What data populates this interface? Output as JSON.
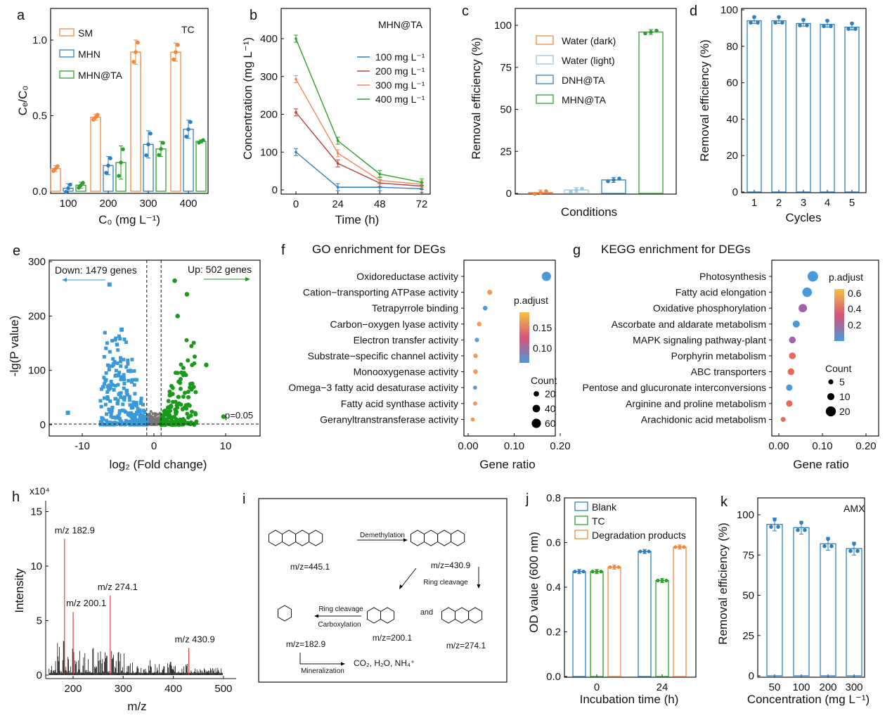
{
  "chart_data": [
    {
      "panel": "a",
      "panel_label": "a",
      "type": "bar",
      "annotation": "TC",
      "xlabel": "C₀ (mg L⁻¹)",
      "ylabel": "Cₑ/C₀",
      "ylim": [
        0,
        1.2
      ],
      "yticks": [
        "0.0",
        "0.5",
        "1.0"
      ],
      "categories": [
        "100",
        "200",
        "300",
        "400"
      ],
      "series": [
        {
          "name": "SM",
          "color": "#F0883E",
          "values": [
            0.15,
            0.49,
            0.92,
            0.92
          ],
          "sd": [
            0.02,
            0.02,
            0.08,
            0.06
          ]
        },
        {
          "name": "MHN",
          "color": "#2E7FC0",
          "values": [
            0.02,
            0.17,
            0.31,
            0.41
          ],
          "sd": [
            0.03,
            0.06,
            0.09,
            0.06
          ]
        },
        {
          "name": "MHN@TA",
          "color": "#2CA02C",
          "values": [
            0.04,
            0.19,
            0.28,
            0.33
          ],
          "sd": [
            0.02,
            0.11,
            0.05,
            0.01
          ]
        }
      ]
    },
    {
      "panel": "b",
      "panel_label": "b",
      "type": "line",
      "annotation": "MHN@TA",
      "xlabel": "Time (h)",
      "ylabel": "Concentration (mg L⁻¹)",
      "xlim": [
        -8,
        80
      ],
      "ylim": [
        -10,
        460
      ],
      "xticks": [
        "0",
        "24",
        "48",
        "72"
      ],
      "yticks": [
        "0",
        "100",
        "200",
        "300",
        "400"
      ],
      "x": [
        0,
        24,
        48,
        72
      ],
      "series": [
        {
          "name": "100 mg L⁻¹",
          "color": "#2E7FC0",
          "values": [
            100,
            7,
            7,
            3
          ]
        },
        {
          "name": "200 mg L⁻¹",
          "color": "#B8443A",
          "values": [
            205,
            70,
            18,
            10
          ]
        },
        {
          "name": "300 mg L⁻¹",
          "color": "#F0885A",
          "values": [
            293,
            97,
            25,
            15
          ]
        },
        {
          "name": "400 mg L⁻¹",
          "color": "#2CA02C",
          "values": [
            400,
            130,
            42,
            20
          ]
        }
      ]
    },
    {
      "panel": "c",
      "panel_label": "c",
      "type": "bar",
      "xlabel": "Conditions",
      "ylabel": "Removal efficiency (%)",
      "ylim": [
        0,
        110
      ],
      "yticks": [
        "0",
        "25",
        "50",
        "75",
        "100"
      ],
      "categories": [
        "Water (dark)",
        "Water (light)",
        "DNH@TA",
        "MHN@TA"
      ],
      "colors": [
        "#F0883E",
        "#9ECAE1",
        "#2E7FC0",
        "#2CA02C"
      ],
      "values": [
        0.5,
        2,
        8,
        96
      ]
    },
    {
      "panel": "d",
      "panel_label": "d",
      "type": "bar",
      "xlabel": "Cycles",
      "ylabel": "Removal efficiency (%)",
      "ylim": [
        0,
        100
      ],
      "yticks": [
        "0",
        "20",
        "40",
        "60",
        "80",
        "100"
      ],
      "categories": [
        "1",
        "2",
        "3",
        "4",
        "5"
      ],
      "color": "#2E7FC0",
      "values": [
        94,
        94,
        92.5,
        92,
        90.5
      ]
    },
    {
      "panel": "e",
      "panel_label": "e",
      "type": "scatter",
      "xlabel": "log₂ (Fold change)",
      "ylabel": "-lg(P value)",
      "xlim": [
        -15,
        15
      ],
      "ylim": [
        -5,
        300
      ],
      "xticks": [
        "-10",
        "0",
        "10"
      ],
      "yticks": [
        "0",
        "100",
        "200",
        "300"
      ],
      "down_label": "Down: 1479 genes",
      "up_label": "Up: 502 genes",
      "threshold_label": "p=0.05",
      "down_count": 1479,
      "up_count": 502,
      "fold_cutoff": 1,
      "down_color": "#3A9AD9",
      "up_color": "#1A9A1A",
      "ns_color": "#777777",
      "highlight_down": [
        [
          -6.2,
          258
        ],
        [
          -12,
          22
        ],
        [
          -4.5,
          175
        ]
      ],
      "highlight_up": [
        [
          2.9,
          265
        ],
        [
          4.6,
          240
        ],
        [
          3.3,
          200
        ],
        [
          7.3,
          110
        ],
        [
          9.7,
          15
        ]
      ]
    },
    {
      "panel": "f",
      "panel_label": "f",
      "type": "scatter",
      "title": "GO enrichment for DEGs",
      "xlabel": "Gene ratio",
      "xlim": [
        0,
        0.2
      ],
      "xticks": [
        "0.00",
        "0.10",
        "0.20"
      ],
      "color_legend_title": "p.adjust",
      "color_ticks": [
        "0.15",
        "0.10"
      ],
      "size_legend_title": "Count",
      "size_ticks": [
        "20",
        "40",
        "60"
      ],
      "terms": [
        {
          "name": "Oxidoreductase activity",
          "highlight": true,
          "ratio": 0.17,
          "count": 60,
          "padj": 0.08
        },
        {
          "name": "Cation−transporting ATPase activity",
          "highlight": false,
          "ratio": 0.047,
          "count": 18,
          "padj": 0.16
        },
        {
          "name": "Tetrapyrrole binding",
          "highlight": true,
          "ratio": 0.037,
          "count": 15,
          "padj": 0.09
        },
        {
          "name": "Carbon−oxygen lyase activity",
          "highlight": true,
          "ratio": 0.024,
          "count": 15,
          "padj": 0.17
        },
        {
          "name": "Electron transfer activity",
          "highlight": false,
          "ratio": 0.019,
          "count": 14,
          "padj": 0.1
        },
        {
          "name": "Substrate−specific channel activity",
          "highlight": false,
          "ratio": 0.016,
          "count": 14,
          "padj": 0.14
        },
        {
          "name": "Monooxygenase activity",
          "highlight": true,
          "ratio": 0.016,
          "count": 15,
          "padj": 0.16
        },
        {
          "name": "Omega−3 fatty acid desaturase activity",
          "highlight": false,
          "ratio": 0.015,
          "count": 12,
          "padj": 0.1
        },
        {
          "name": "Fatty acid synthase activity",
          "highlight": false,
          "ratio": 0.015,
          "count": 13,
          "padj": 0.16
        },
        {
          "name": "Geranyltranstransferase activity",
          "highlight": false,
          "ratio": 0.01,
          "count": 12,
          "padj": 0.16
        }
      ]
    },
    {
      "panel": "g",
      "panel_label": "g",
      "type": "scatter",
      "title": "KEGG enrichment for DEGs",
      "xlabel": "Gene ratio",
      "xlim": [
        0,
        0.2
      ],
      "xticks": [
        "0.00",
        "0.10",
        "0.20"
      ],
      "color_legend_title": "p.adjust",
      "color_ticks": [
        "0.6",
        "0.4",
        "0.2"
      ],
      "size_legend_title": "Count",
      "size_ticks": [
        "5",
        "10",
        "20"
      ],
      "terms": [
        {
          "name": "Photosynthesis",
          "highlight": false,
          "ratio": 0.078,
          "count": 22,
          "padj": 0.05
        },
        {
          "name": "Fatty acid elongation",
          "highlight": true,
          "ratio": 0.065,
          "count": 18,
          "padj": 0.05
        },
        {
          "name": "Oxidative phosphorylation",
          "highlight": false,
          "ratio": 0.055,
          "count": 14,
          "padj": 0.35
        },
        {
          "name": "Ascorbate and aldarate metabolism",
          "highlight": true,
          "ratio": 0.04,
          "count": 10,
          "padj": 0.1
        },
        {
          "name": "MAPK signaling pathway-plant",
          "highlight": false,
          "ratio": 0.031,
          "count": 9,
          "padj": 0.3
        },
        {
          "name": "Porphyrin metabolism",
          "highlight": true,
          "ratio": 0.031,
          "count": 9,
          "padj": 0.45
        },
        {
          "name": "ABC transporters",
          "highlight": false,
          "ratio": 0.028,
          "count": 9,
          "padj": 0.48
        },
        {
          "name": "Pentose and glucuronate interconversions",
          "highlight": true,
          "ratio": 0.024,
          "count": 8,
          "padj": 0.1
        },
        {
          "name": "Arginine and proline metabolism",
          "highlight": false,
          "ratio": 0.024,
          "count": 8,
          "padj": 0.6
        },
        {
          "name": "Arachidonic acid metabolism",
          "highlight": true,
          "ratio": 0.01,
          "count": 5,
          "padj": 0.62
        }
      ]
    },
    {
      "panel": "h",
      "panel_label": "h",
      "type": "bar",
      "xlabel": "m/z",
      "ylabel": "Intensity",
      "scale_label": "x10⁴",
      "xlim": [
        150,
        500
      ],
      "ylim": [
        0,
        16
      ],
      "xticks": [
        "200",
        "300",
        "400",
        "500"
      ],
      "yticks": [
        "0",
        "5",
        "10",
        "15"
      ],
      "peaks": [
        {
          "label": "m/z 182.9",
          "mz": 182.9,
          "intensity": 12.5
        },
        {
          "label": "m/z 200.1",
          "mz": 200.1,
          "intensity": 5.8
        },
        {
          "label": "m/z 274.1",
          "mz": 274.1,
          "intensity": 7.3
        },
        {
          "label": "m/z 430.9",
          "mz": 430.9,
          "intensity": 2.5
        }
      ],
      "peak_color": "#D9443C"
    },
    {
      "panel": "j",
      "panel_label": "j",
      "type": "bar",
      "xlabel": "Incubation time (h)",
      "ylabel": "OD value (600 nm)",
      "ylim": [
        0,
        0.8
      ],
      "yticks": [
        "0.0",
        "0.2",
        "0.4",
        "0.6",
        "0.8"
      ],
      "categories": [
        "0",
        "24"
      ],
      "series": [
        {
          "name": "Blank",
          "color": "#2E7FC0",
          "values": [
            0.47,
            0.56
          ]
        },
        {
          "name": "TC",
          "color": "#2CA02C",
          "values": [
            0.47,
            0.43
          ]
        },
        {
          "name": "Degradation products",
          "color": "#F0883E",
          "values": [
            0.49,
            0.58
          ]
        }
      ]
    },
    {
      "panel": "k",
      "panel_label": "k",
      "type": "bar",
      "annotation": "AMX",
      "xlabel": "Concentration (mg L⁻¹)",
      "ylabel": "Removal efficiency (%)",
      "ylim": [
        0,
        110
      ],
      "yticks": [
        "0",
        "25",
        "50",
        "75",
        "100"
      ],
      "categories": [
        "50",
        "100",
        "200",
        "300"
      ],
      "color": "#2E7FC0",
      "values": [
        94,
        92,
        82,
        79
      ]
    }
  ],
  "diagram_i": {
    "panel_label": "i",
    "compounds": [
      "m/z=445.1",
      "m/z=430.9",
      "m/z=182.9",
      "m/z=200.1",
      "m/z=274.1"
    ],
    "steps": [
      "Demethylation",
      "Ring cleavage",
      "Ring cleavage",
      "Carboxylation",
      "Mineralization"
    ],
    "connector": "and",
    "products": "CO₂, H₂O, NH₄⁺"
  }
}
